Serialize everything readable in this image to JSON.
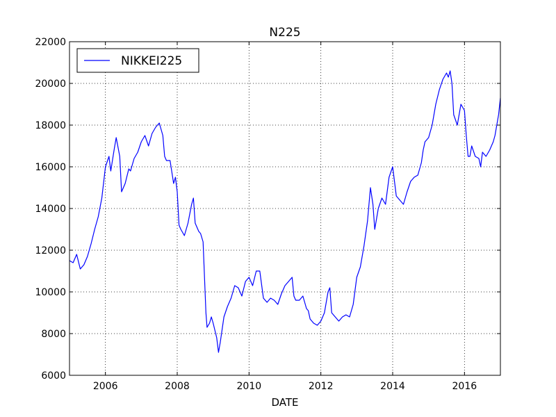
{
  "chart_data": {
    "type": "line",
    "title": "N225",
    "xlabel": "DATE",
    "ylabel": "",
    "xlim": [
      2005.0,
      2017.0
    ],
    "ylim": [
      6000,
      22000
    ],
    "grid": true,
    "legend_position": "top-left",
    "x_ticks": [
      {
        "value": 2006,
        "label": "2006"
      },
      {
        "value": 2008,
        "label": "2008"
      },
      {
        "value": 2010,
        "label": "2010"
      },
      {
        "value": 2012,
        "label": "2012"
      },
      {
        "value": 2014,
        "label": "2014"
      },
      {
        "value": 2016,
        "label": "2016"
      }
    ],
    "y_ticks": [
      {
        "value": 6000,
        "label": "6000"
      },
      {
        "value": 8000,
        "label": "8000"
      },
      {
        "value": 10000,
        "label": "10000"
      },
      {
        "value": 12000,
        "label": "12000"
      },
      {
        "value": 14000,
        "label": "14000"
      },
      {
        "value": 16000,
        "label": "16000"
      },
      {
        "value": 18000,
        "label": "18000"
      },
      {
        "value": 20000,
        "label": "20000"
      },
      {
        "value": 22000,
        "label": "22000"
      }
    ],
    "series": [
      {
        "name": "NIKKEI225",
        "color": "#0000ff",
        "x": [
          2005.0,
          2005.1,
          2005.2,
          2005.3,
          2005.4,
          2005.5,
          2005.6,
          2005.7,
          2005.8,
          2005.9,
          2006.0,
          2006.1,
          2006.15,
          2006.25,
          2006.3,
          2006.4,
          2006.45,
          2006.55,
          2006.65,
          2006.7,
          2006.8,
          2006.9,
          2007.0,
          2007.1,
          2007.2,
          2007.3,
          2007.4,
          2007.5,
          2007.6,
          2007.65,
          2007.7,
          2007.8,
          2007.9,
          2007.95,
          2008.0,
          2008.05,
          2008.1,
          2008.2,
          2008.3,
          2008.4,
          2008.45,
          2008.5,
          2008.6,
          2008.65,
          2008.72,
          2008.8,
          2008.83,
          2008.9,
          2008.95,
          2009.0,
          2009.1,
          2009.15,
          2009.2,
          2009.3,
          2009.4,
          2009.5,
          2009.6,
          2009.7,
          2009.8,
          2009.9,
          2010.0,
          2010.1,
          2010.2,
          2010.3,
          2010.4,
          2010.5,
          2010.6,
          2010.7,
          2010.8,
          2010.9,
          2011.0,
          2011.1,
          2011.2,
          2011.25,
          2011.3,
          2011.4,
          2011.5,
          2011.6,
          2011.65,
          2011.7,
          2011.8,
          2011.9,
          2012.0,
          2012.1,
          2012.2,
          2012.25,
          2012.3,
          2012.4,
          2012.5,
          2012.6,
          2012.7,
          2012.8,
          2012.9,
          2013.0,
          2013.1,
          2013.2,
          2013.3,
          2013.38,
          2013.45,
          2013.5,
          2013.6,
          2013.7,
          2013.8,
          2013.9,
          2014.0,
          2014.1,
          2014.2,
          2014.3,
          2014.4,
          2014.5,
          2014.6,
          2014.7,
          2014.8,
          2014.85,
          2014.9,
          2015.0,
          2015.1,
          2015.2,
          2015.3,
          2015.4,
          2015.5,
          2015.55,
          2015.6,
          2015.65,
          2015.7,
          2015.8,
          2015.9,
          2016.0,
          2016.05,
          2016.1,
          2016.15,
          2016.2,
          2016.3,
          2016.4,
          2016.45,
          2016.5,
          2016.6,
          2016.7,
          2016.8,
          2016.85,
          2016.9,
          2016.95,
          2017.0
        ],
        "y": [
          11500,
          11400,
          11800,
          11100,
          11300,
          11700,
          12300,
          13000,
          13600,
          14500,
          16000,
          16500,
          15800,
          16900,
          17400,
          16500,
          14800,
          15200,
          15900,
          15800,
          16400,
          16700,
          17200,
          17500,
          17000,
          17600,
          17900,
          18100,
          17500,
          16500,
          16300,
          16300,
          15200,
          15500,
          14800,
          13200,
          13000,
          12700,
          13300,
          14200,
          14500,
          13300,
          12900,
          12800,
          12400,
          9000,
          8300,
          8500,
          8800,
          8500,
          7800,
          7100,
          7600,
          8800,
          9300,
          9700,
          10300,
          10200,
          9800,
          10500,
          10700,
          10300,
          11000,
          11000,
          9700,
          9500,
          9700,
          9600,
          9400,
          9900,
          10300,
          10500,
          10700,
          9800,
          9600,
          9600,
          9800,
          9200,
          9100,
          8700,
          8500,
          8400,
          8600,
          9000,
          10000,
          10200,
          9000,
          8800,
          8600,
          8800,
          8900,
          8800,
          9400,
          10700,
          11200,
          12200,
          13400,
          15000,
          14200,
          13000,
          14000,
          14500,
          14200,
          15500,
          16000,
          14600,
          14400,
          14200,
          14800,
          15300,
          15500,
          15600,
          16200,
          16800,
          17200,
          17400,
          18000,
          19000,
          19700,
          20200,
          20500,
          20300,
          20600,
          20000,
          18500,
          18000,
          19000,
          18700,
          17500,
          16500,
          16500,
          17000,
          16500,
          16400,
          16000,
          16700,
          16500,
          16800,
          17200,
          17500,
          18000,
          18500,
          19300
        ]
      }
    ]
  }
}
